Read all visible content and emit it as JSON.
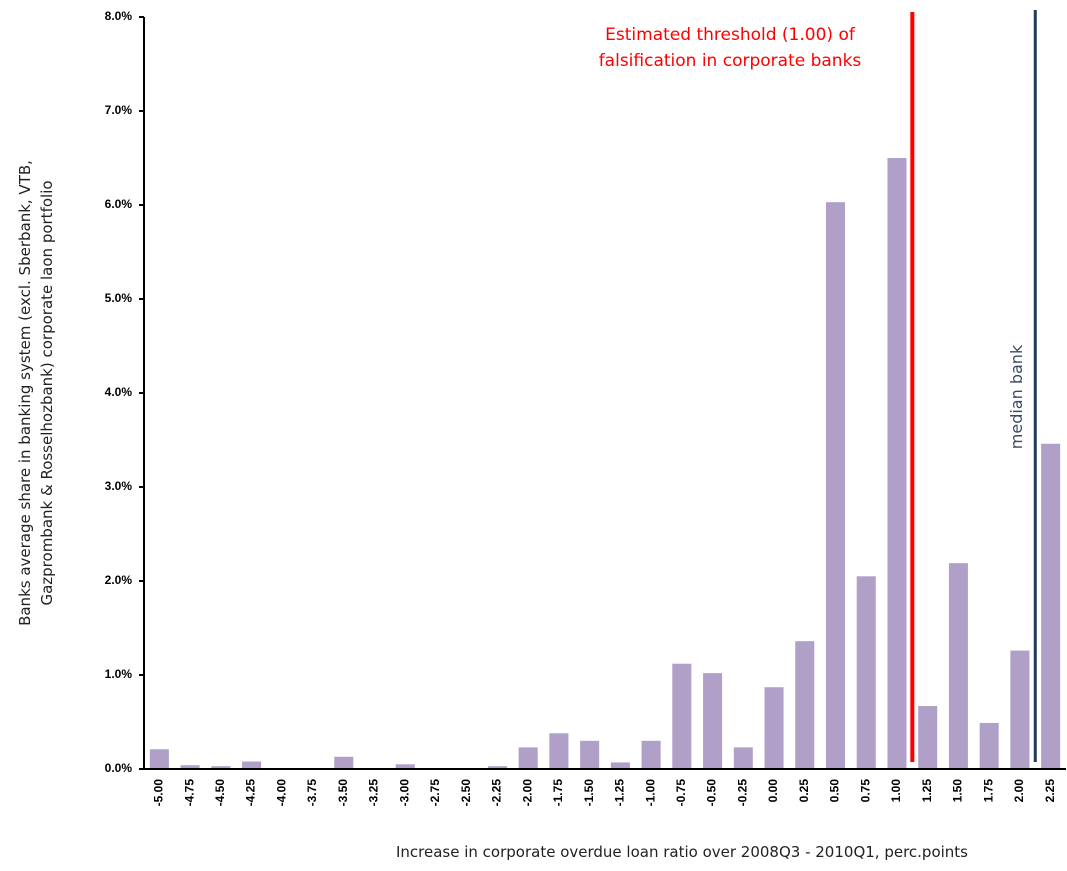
{
  "chart_data": {
    "type": "bar",
    "ylabel": [
      "Banks average share in banking system (excl. Sberbank, VTB,",
      "Gazprombank & Rosselhozbank) corporate laon portfolio"
    ],
    "xlabel": "Increase in corporate overdue loan ratio over  2008Q3 - 2010Q1, perc.points",
    "annotations": [
      "Estimated threshold  (1.00) of",
      "falsification in corporate banks",
      "median bank"
    ],
    "categories": [
      "-5.00",
      "-4.75",
      "-4.50",
      "-4.25",
      "-4.00",
      "-3.75",
      "-3.50",
      "-3.25",
      "-3.00",
      "-2.75",
      "-2.50",
      "-2.25",
      "-2.00",
      "-1.75",
      "-1.50",
      "-1.25",
      "-1.00",
      "-0.75",
      "-0.50",
      "-0.25",
      "0.00",
      "0.25",
      "0.50",
      "0.75",
      "1.00",
      "1.25",
      "1.50",
      "1.75",
      "2.00",
      "2.25"
    ],
    "values": [
      0.21,
      0.04,
      0.03,
      0.08,
      0,
      0,
      0.13,
      0,
      0.05,
      0,
      0,
      0.03,
      0.23,
      0.38,
      0.3,
      0.07,
      0.3,
      1.12,
      1.02,
      0.23,
      0.87,
      1.36,
      6.03,
      2.05,
      6.5,
      0.67,
      2.19,
      0.49,
      1.26,
      3.46
    ],
    "color": "#b0a0c8",
    "ylim": [
      0,
      8
    ],
    "yticks": [
      {
        "value": 0,
        "label": "0.0%"
      },
      {
        "value": 1,
        "label": "1.0%"
      },
      {
        "value": 2,
        "label": "2.0%"
      },
      {
        "value": 3,
        "label": "3.0%"
      },
      {
        "value": 4,
        "label": "4.0%"
      },
      {
        "value": 5,
        "label": "5.0%"
      },
      {
        "value": 6,
        "label": "6.0%"
      },
      {
        "value": 7,
        "label": "7.0%"
      },
      {
        "value": 8,
        "label": "8.0%"
      }
    ],
    "grid": false
  }
}
